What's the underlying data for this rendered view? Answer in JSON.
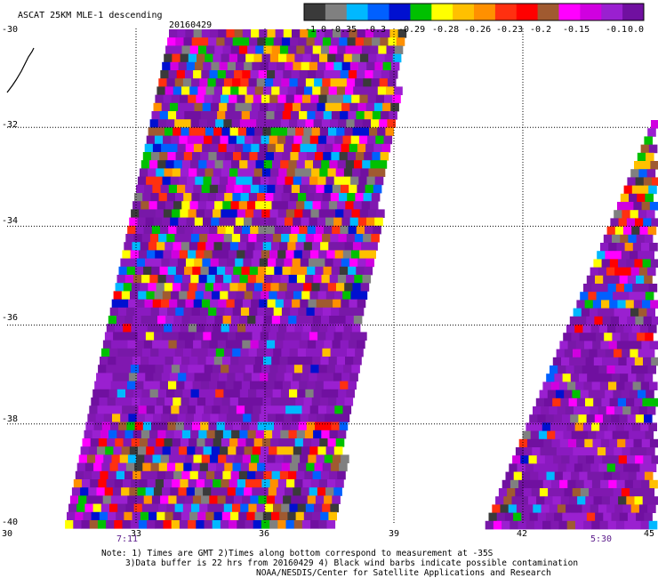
{
  "title": "ASCAT 25KM MLE-1 descending",
  "date": "20160429",
  "colors": {
    "grid": "#000000",
    "time_label": "#5a1a8a"
  },
  "legend": {
    "colors": [
      "#3a3a3a",
      "#808080",
      "#00b8ff",
      "#0060ff",
      "#0010d0",
      "#00c000",
      "#ffff00",
      "#ffc000",
      "#ff9000",
      "#ff3010",
      "#ff0000",
      "#a05a30",
      "#ff00ff",
      "#d000e0",
      "#9a20d0",
      "#7010a0"
    ],
    "labels": [
      "-1.0",
      "-0.35",
      "-0.3",
      "-0.29",
      "-0.28",
      "-0.26",
      "-0.23",
      "-0.2",
      "-0.15",
      "-0.1",
      "0.0"
    ]
  },
  "axes": {
    "x_ticks": [
      "30",
      "33",
      "36",
      "39",
      "42",
      "45"
    ],
    "y_ticks": [
      "-30",
      "-32",
      "-34",
      "-36",
      "-38",
      "-40"
    ]
  },
  "times": {
    "left": "7:11",
    "right": "5:30"
  },
  "notes": {
    "line1": "Note: 1) Times are GMT 2)Times along bottom correspond to measurement at -35S",
    "line2": "3)Data buffer is 22 hrs from 20160429 4) Black wind barbs indicate possible contamination",
    "line3": "NOAA/NESDIS/Center for Satellite Applications and Research"
  }
}
